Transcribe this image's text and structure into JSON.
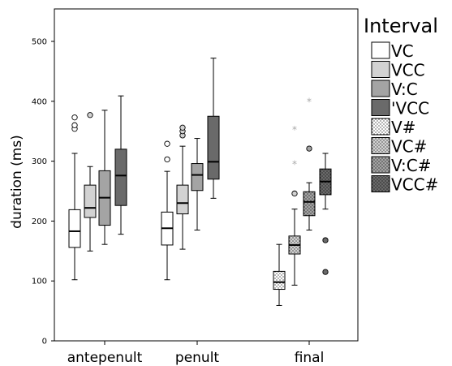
{
  "chart_data": {
    "type": "boxplot",
    "ylabel": "duration (ms)",
    "ylim": [
      0,
      550
    ],
    "yticks": [
      0,
      100,
      200,
      300,
      400,
      500
    ],
    "categories": [
      "antepenult",
      "penult",
      "final"
    ],
    "legend": {
      "title": "Interval",
      "position": "right",
      "entries": [
        {
          "label": "VC",
          "color": "#ffffff",
          "pattern": "none"
        },
        {
          "label": "VCC",
          "color": "#d2d2d2",
          "pattern": "none"
        },
        {
          "label": "V:C",
          "color": "#a4a4a4",
          "pattern": "none"
        },
        {
          "label": "'VCC",
          "color": "#6a6a6a",
          "pattern": "none"
        },
        {
          "label": "V#",
          "color": "#ffffff",
          "pattern": "dots"
        },
        {
          "label": "VC#",
          "color": "#d2d2d2",
          "pattern": "dots"
        },
        {
          "label": "V:C#",
          "color": "#a4a4a4",
          "pattern": "dots"
        },
        {
          "label": "VCC#",
          "color": "#6a6a6a",
          "pattern": "dots"
        }
      ]
    },
    "boxes": [
      {
        "category": "antepenult",
        "series": "VC",
        "min": 102,
        "q1": 156,
        "median": 183,
        "q3": 219,
        "max": 313,
        "outliers": [
          354,
          360,
          373
        ],
        "extremes": []
      },
      {
        "category": "antepenult",
        "series": "VCC",
        "min": 150,
        "q1": 206,
        "median": 222,
        "q3": 260,
        "max": 291,
        "outliers": [
          377
        ],
        "extremes": []
      },
      {
        "category": "antepenult",
        "series": "V:C",
        "min": 161,
        "q1": 193,
        "median": 239,
        "q3": 284,
        "max": 385,
        "outliers": [],
        "extremes": []
      },
      {
        "category": "antepenult",
        "series": "'VCC",
        "min": 178,
        "q1": 226,
        "median": 276,
        "q3": 320,
        "max": 409,
        "outliers": [],
        "extremes": []
      },
      {
        "category": "penult",
        "series": "VC",
        "min": 102,
        "q1": 160,
        "median": 188,
        "q3": 215,
        "max": 283,
        "outliers": [
          303,
          329
        ],
        "extremes": []
      },
      {
        "category": "penult",
        "series": "VCC",
        "min": 153,
        "q1": 212,
        "median": 230,
        "q3": 260,
        "max": 325,
        "outliers": [
          343,
          350,
          356
        ],
        "extremes": []
      },
      {
        "category": "penult",
        "series": "V:C",
        "min": 185,
        "q1": 251,
        "median": 277,
        "q3": 296,
        "max": 338,
        "outliers": [],
        "extremes": []
      },
      {
        "category": "penult",
        "series": "'VCC",
        "min": 238,
        "q1": 270,
        "median": 299,
        "q3": 375,
        "max": 472,
        "outliers": [],
        "extremes": []
      },
      {
        "category": "final",
        "series": "V#",
        "min": 59,
        "q1": 86,
        "median": 98,
        "q3": 116,
        "max": 161,
        "outliers": [],
        "extremes": []
      },
      {
        "category": "final",
        "series": "VC#",
        "min": 93,
        "q1": 145,
        "median": 160,
        "q3": 175,
        "max": 220,
        "outliers": [
          246
        ],
        "extremes": [
          295,
          352
        ]
      },
      {
        "category": "final",
        "series": "V:C#",
        "min": 185,
        "q1": 209,
        "median": 232,
        "q3": 249,
        "max": 264,
        "outliers": [
          321
        ],
        "extremes": [
          399
        ]
      },
      {
        "category": "final",
        "series": "VCC#",
        "min": 220,
        "q1": 244,
        "median": 266,
        "q3": 287,
        "max": 313,
        "outliers": [
          115,
          168
        ],
        "extremes": []
      }
    ]
  }
}
